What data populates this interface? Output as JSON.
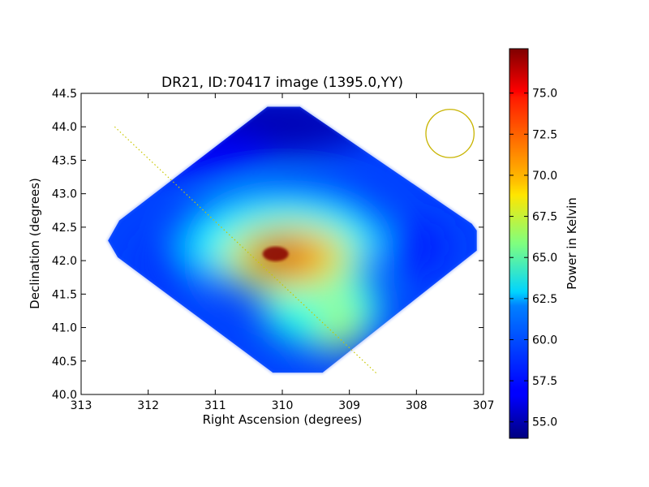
{
  "chart_data": {
    "type": "heatmap",
    "title": "DR21, ID:70417 image (1395.0,YY)",
    "xlabel": "Right Ascension (degrees)",
    "ylabel": "Declination (degrees)",
    "xlim": [
      313,
      307
    ],
    "ylim": [
      40.0,
      44.5
    ],
    "x_ticks": [
      "313",
      "312",
      "311",
      "310",
      "309",
      "308",
      "307"
    ],
    "y_ticks": [
      "40.0",
      "40.5",
      "41.0",
      "41.5",
      "42.0",
      "42.5",
      "43.0",
      "43.5",
      "44.0",
      "44.5"
    ],
    "colorbar": {
      "label": "Power in Kelvin",
      "range": [
        54.0,
        77.7
      ],
      "ticks": [
        "55.0",
        "57.5",
        "60.0",
        "62.5",
        "65.0",
        "67.5",
        "70.0",
        "72.5",
        "75.0"
      ],
      "colormap": "jet"
    },
    "map_extent": {
      "ra": [
        312.6,
        307.1
      ],
      "dec": [
        40.35,
        44.3
      ]
    },
    "features": [
      {
        "kind": "peak",
        "ra": 310.1,
        "dec": 42.1,
        "value": 77.5
      },
      {
        "kind": "plateau",
        "ra": 309.8,
        "dec": 41.95,
        "value": 72.0
      },
      {
        "kind": "tail",
        "ra": 309.1,
        "dec": 41.0,
        "value": 67.0
      },
      {
        "kind": "minimum",
        "ra": 310.1,
        "dec": 44.2,
        "value": 55.0
      }
    ],
    "overlays": {
      "beam_circle": {
        "ra": 307.5,
        "dec": 43.9,
        "radius_deg": 0.36,
        "color": "#c8b400"
      },
      "dotted_line": {
        "from": [
          312.5,
          44.0
        ],
        "to": [
          308.6,
          40.32
        ],
        "color": "#c8c800"
      }
    }
  }
}
